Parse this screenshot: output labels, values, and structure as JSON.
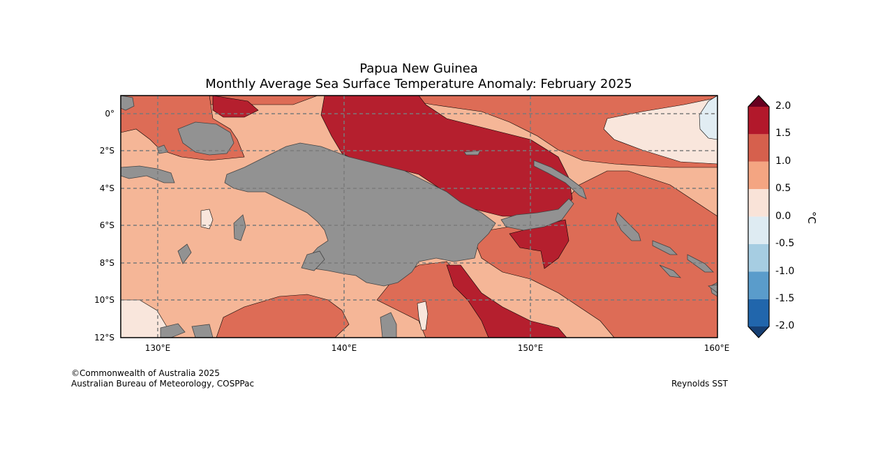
{
  "title": {
    "line1": "Papua New Guinea",
    "line2": "Monthly Average Sea Surface Temperature Anomaly: February 2025"
  },
  "map": {
    "lat_labels": [
      "0°",
      "2°S",
      "4°S",
      "6°S",
      "8°S",
      "10°S",
      "12°S"
    ],
    "lon_labels": [
      "130°E",
      "140°E",
      "150°E",
      "160°E"
    ],
    "extent": {
      "lon_min": 128,
      "lon_max": 160,
      "lat_min": -12,
      "lat_max": 1
    }
  },
  "colorbar": {
    "unit": "°C",
    "tick_labels": [
      "2.0",
      "1.5",
      "1.0",
      "0.5",
      "0.0",
      "-0.5",
      "-1.0",
      "-1.5",
      "-2.0"
    ],
    "colors": [
      "#67001f",
      "#b2182b",
      "#d6604d",
      "#f4a582",
      "#f9e3d8",
      "#deebf2",
      "#a6cde2",
      "#5a9ccb",
      "#2166ac",
      "#163f73"
    ]
  },
  "colors": {
    "land": "#929292",
    "grid": "#7a7a7a",
    "anom_1_5_2_0": "#b51f2e",
    "anom_1_0_1_5": "#dd6c56",
    "anom_0_5_1_0": "#f5b697",
    "anom_0_0_0_5": "#f9e6dc",
    "anom_m0_5_0_0": "#e1edf3"
  },
  "footer": {
    "copyright": "©Commonwealth of Australia 2025",
    "agency": "Australian Bureau of Meteorology, COSPPac",
    "source": "Reynolds SST"
  }
}
